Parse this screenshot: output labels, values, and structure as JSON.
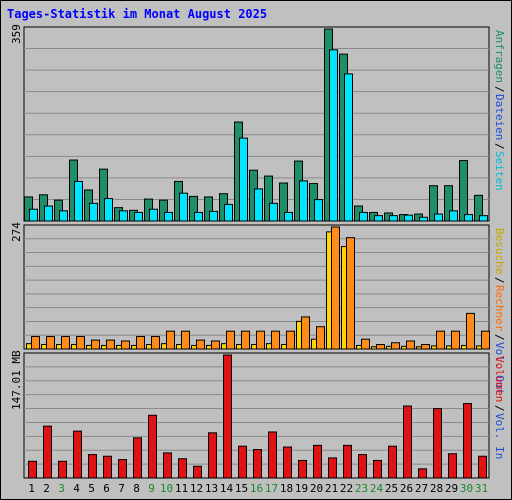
{
  "title": "Tages-Statistik im Monat August 2025",
  "colors": {
    "anfragen": "#1f8f6a",
    "dateien": "#00e5ff",
    "seiten": "#1e4cd6",
    "besuche": "#ffd700",
    "rechner": "#ff8c1a",
    "volumen": "#e11212",
    "weekend_day": "#1a8a2a",
    "weekday": "#000000"
  },
  "panels": {
    "top": {
      "ymax_label": "359",
      "side_labels": [
        {
          "text": "Anfragen",
          "color": "#1f8f6a"
        },
        {
          "text": "Dateien",
          "color": "#1e4cd6"
        },
        {
          "text": "Seiten",
          "color": "#00bcd4"
        }
      ]
    },
    "middle": {
      "ymax_label": "274",
      "side_labels": [
        {
          "text": "Besuche",
          "color": "#c8a800"
        },
        {
          "text": "Rechner",
          "color": "#ff6a00"
        },
        {
          "text": "Vol. Out",
          "color": "#1e4cd6"
        }
      ]
    },
    "bottom": {
      "ymax_label": "147.01 MB",
      "side_labels": [
        {
          "text": "Volumen",
          "color": "#e11212"
        },
        {
          "text": "Vol. In",
          "color": "#1e4cd6"
        }
      ]
    }
  },
  "days": [
    {
      "label": "1",
      "weekend": false
    },
    {
      "label": "2",
      "weekend": false
    },
    {
      "label": "3",
      "weekend": true
    },
    {
      "label": "4",
      "weekend": false
    },
    {
      "label": "5",
      "weekend": false
    },
    {
      "label": "6",
      "weekend": false
    },
    {
      "label": "7",
      "weekend": false
    },
    {
      "label": "8",
      "weekend": false
    },
    {
      "label": "9",
      "weekend": true
    },
    {
      "label": "10",
      "weekend": true
    },
    {
      "label": "11",
      "weekend": false
    },
    {
      "label": "12",
      "weekend": false
    },
    {
      "label": "13",
      "weekend": false
    },
    {
      "label": "14",
      "weekend": false
    },
    {
      "label": "15",
      "weekend": false
    },
    {
      "label": "16",
      "weekend": true
    },
    {
      "label": "17",
      "weekend": true
    },
    {
      "label": "18",
      "weekend": false
    },
    {
      "label": "19",
      "weekend": false
    },
    {
      "label": "20",
      "weekend": false
    },
    {
      "label": "21",
      "weekend": false
    },
    {
      "label": "22",
      "weekend": false
    },
    {
      "label": "23",
      "weekend": true
    },
    {
      "label": "24",
      "weekend": true
    },
    {
      "label": "25",
      "weekend": false
    },
    {
      "label": "26",
      "weekend": false
    },
    {
      "label": "27",
      "weekend": false
    },
    {
      "label": "28",
      "weekend": false
    },
    {
      "label": "29",
      "weekend": false
    },
    {
      "label": "30",
      "weekend": true
    },
    {
      "label": "31",
      "weekend": true
    }
  ],
  "chart_data": [
    {
      "type": "bar",
      "categories": [
        "1",
        "2",
        "3",
        "4",
        "5",
        "6",
        "7",
        "8",
        "9",
        "10",
        "11",
        "12",
        "13",
        "14",
        "15",
        "16",
        "17",
        "18",
        "19",
        "20",
        "21",
        "22",
        "23",
        "24",
        "25",
        "26",
        "27",
        "28",
        "29",
        "30",
        "31"
      ],
      "ylim": [
        0,
        359
      ],
      "series": [
        {
          "name": "Anfragen",
          "values": [
            45,
            49,
            39,
            114,
            58,
            97,
            25,
            20,
            41,
            39,
            74,
            46,
            45,
            51,
            185,
            95,
            84,
            71,
            112,
            70,
            359,
            312,
            28,
            16,
            15,
            12,
            13,
            66,
            66,
            113,
            48
          ]
        },
        {
          "name": "Dateien",
          "values": [
            22,
            28,
            19,
            74,
            33,
            42,
            19,
            16,
            22,
            16,
            52,
            16,
            18,
            31,
            155,
            60,
            33,
            16,
            75,
            40,
            320,
            275,
            16,
            10,
            10,
            11,
            7,
            13,
            19,
            12,
            10
          ]
        },
        {
          "name": "Seiten",
          "values": [
            0,
            0,
            0,
            0,
            0,
            0,
            0,
            0,
            0,
            0,
            0,
            0,
            0,
            0,
            0,
            0,
            0,
            0,
            0,
            0,
            0,
            0,
            0,
            0,
            0,
            0,
            0,
            0,
            0,
            0,
            0
          ]
        }
      ]
    },
    {
      "type": "bar",
      "categories": [
        "1",
        "2",
        "3",
        "4",
        "5",
        "6",
        "7",
        "8",
        "9",
        "10",
        "11",
        "12",
        "13",
        "14",
        "15",
        "16",
        "17",
        "18",
        "19",
        "20",
        "21",
        "22",
        "23",
        "24",
        "25",
        "26",
        "27",
        "28",
        "29",
        "30",
        "31"
      ],
      "ylim": [
        0,
        274
      ],
      "series": [
        {
          "name": "Besuche",
          "values": [
            12,
            10,
            10,
            10,
            8,
            8,
            8,
            8,
            10,
            12,
            10,
            8,
            8,
            12,
            10,
            10,
            12,
            10,
            62,
            22,
            263,
            230,
            8,
            5,
            6,
            6,
            5,
            7,
            7,
            8,
            7
          ]
        },
        {
          "name": "Rechner",
          "values": [
            28,
            28,
            28,
            28,
            20,
            20,
            18,
            28,
            28,
            40,
            40,
            20,
            18,
            40,
            40,
            40,
            40,
            40,
            72,
            50,
            274,
            250,
            22,
            10,
            14,
            18,
            10,
            40,
            40,
            80,
            40
          ]
        }
      ]
    },
    {
      "type": "bar",
      "categories": [
        "1",
        "2",
        "3",
        "4",
        "5",
        "6",
        "7",
        "8",
        "9",
        "10",
        "11",
        "12",
        "13",
        "14",
        "15",
        "16",
        "17",
        "18",
        "19",
        "20",
        "21",
        "22",
        "23",
        "24",
        "25",
        "26",
        "27",
        "28",
        "29",
        "30",
        "31"
      ],
      "ylim": [
        0,
        147.01
      ],
      "ylabel": "MB",
      "series": [
        {
          "name": "Volumen",
          "values": [
            20,
            62,
            20,
            56,
            28,
            26,
            22,
            48,
            75,
            30,
            23,
            14,
            54,
            147.01,
            38,
            34,
            55,
            37,
            21,
            39,
            24,
            39,
            28,
            21,
            38,
            86,
            11,
            83,
            29,
            89,
            26
          ]
        }
      ]
    }
  ]
}
